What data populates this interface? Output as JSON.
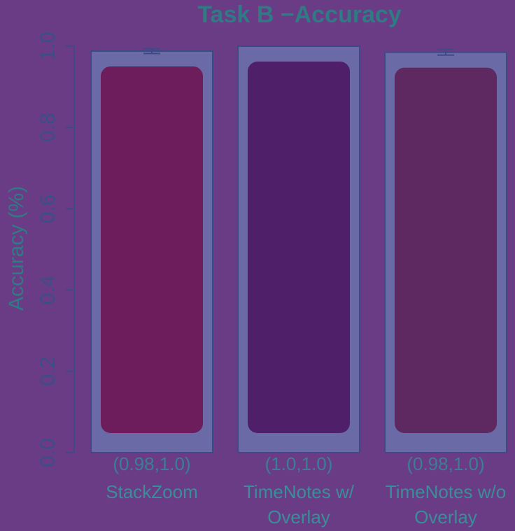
{
  "chart_data": {
    "type": "bar",
    "title": "Task B −Accuracy",
    "ylabel": "Accuracy (%)",
    "ylim": [
      0,
      1
    ],
    "yticks": [
      "0.0",
      "0.2",
      "0.4",
      "0.6",
      "0.8",
      "1.0"
    ],
    "categories": [
      {
        "lines": [
          "StackZoom"
        ],
        "ci_label": "(0.98,1.0)",
        "value": 0.988,
        "ci": [
          0.982,
          0.994
        ],
        "color": "#6d1d5c"
      },
      {
        "lines": [
          "TimeNotes w/",
          "Overlay"
        ],
        "ci_label": "(1.0,1.0)",
        "value": 1.0,
        "ci": null,
        "color": "#4f2069"
      },
      {
        "lines": [
          "TimeNotes w/o",
          "Overlay"
        ],
        "ci_label": "(0.98,1.0)",
        "value": 0.985,
        "ci": [
          0.978,
          0.992
        ],
        "color": "#5e2860"
      }
    ],
    "grid": false,
    "legend": "none"
  }
}
